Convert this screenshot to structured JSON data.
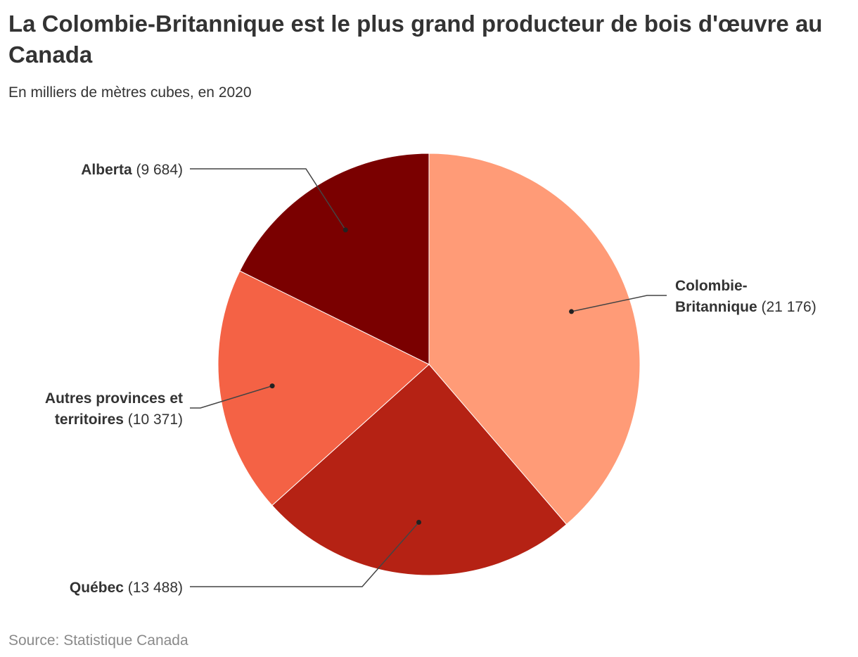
{
  "header": {
    "title": "La Colombie-Britannique est le plus grand producteur de bois d'œuvre au Canada",
    "subtitle": "En milliers de mètres cubes, en 2020"
  },
  "footer": {
    "source": "Source: Statistique Canada"
  },
  "chart_data": {
    "type": "pie",
    "title": "La Colombie-Britannique est le plus grand producteur de bois d'œuvre au Canada",
    "subtitle": "En milliers de mètres cubes, en 2020",
    "start_angle_deg": 0,
    "direction": "clockwise",
    "slices": [
      {
        "name_lines": [
          "Colombie-",
          "Britannique"
        ],
        "value": 21176,
        "value_label": "(21 176)",
        "color": "#ff9b77",
        "label_side": "right"
      },
      {
        "name_lines": [
          "Québec"
        ],
        "value": 13488,
        "value_label": "(13 488)",
        "color": "#b52214",
        "label_side": "left"
      },
      {
        "name_lines": [
          "Autres provinces et",
          "territoires"
        ],
        "value": 10371,
        "value_label": "(10 371)",
        "color": "#f46245",
        "label_side": "left"
      },
      {
        "name_lines": [
          "Alberta"
        ],
        "value": 9684,
        "value_label": "(9 684)",
        "color": "#7a0000",
        "label_side": "left"
      }
    ]
  }
}
